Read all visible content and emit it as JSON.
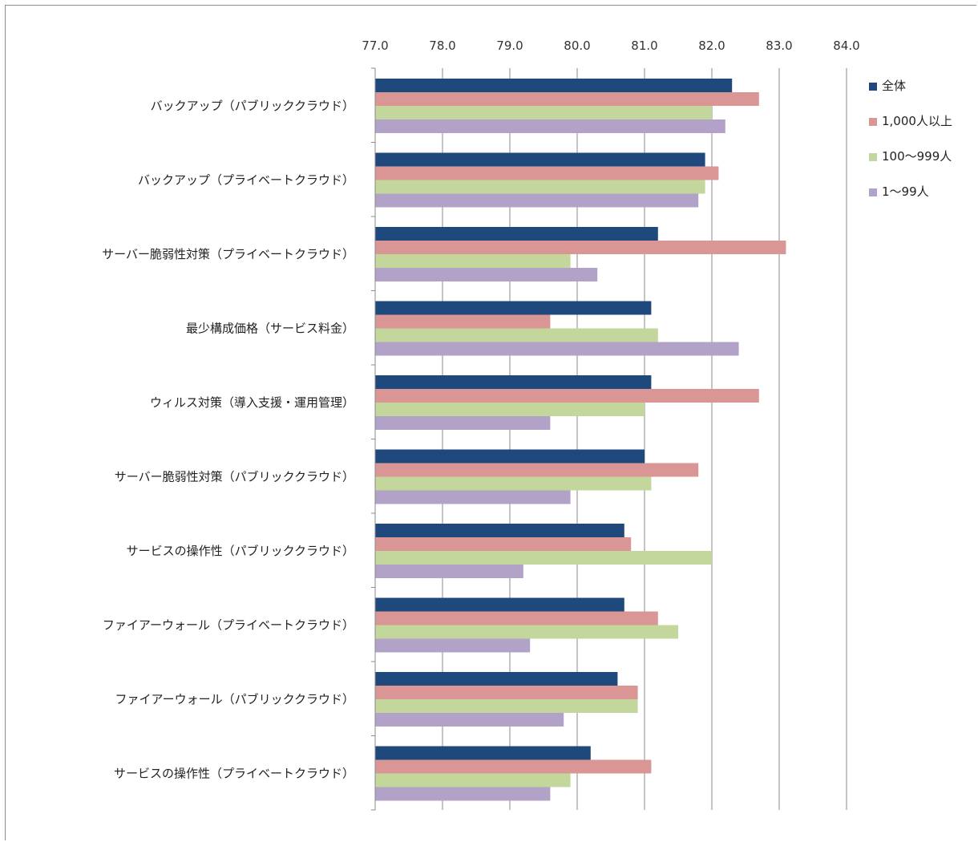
{
  "chart_data": {
    "type": "bar",
    "orientation": "horizontal",
    "categories": [
      "バックアップ（パブリッククラウド）",
      "バックアップ（プライベートクラウド）",
      "サーバー脆弱性対策（プライベートクラウド）",
      "最少構成価格（サービス料金）",
      "ウィルス対策（導入支援・運用管理）",
      "サーバー脆弱性対策（パブリッククラウド）",
      "サービスの操作性（パブリッククラウド）",
      "ファイアーウォール（プライベートクラウド）",
      "ファイアーウォール（パブリッククラウド）",
      "サービスの操作性（プライベートクラウド）"
    ],
    "series": [
      {
        "name": "全体",
        "color": "#1f497d",
        "values": [
          82.3,
          81.9,
          81.2,
          81.1,
          81.1,
          81.0,
          80.7,
          80.7,
          80.6,
          80.2
        ]
      },
      {
        "name": "1,000人以上",
        "color": "#d99694",
        "values": [
          82.7,
          82.1,
          83.1,
          79.6,
          82.7,
          81.8,
          80.8,
          81.2,
          80.9,
          81.1
        ]
      },
      {
        "name": "100〜999人",
        "color": "#c3d69b",
        "values": [
          82.0,
          81.9,
          79.9,
          81.2,
          81.0,
          81.1,
          82.0,
          81.5,
          80.9,
          79.9
        ]
      },
      {
        "name": "1〜99人",
        "color": "#b3a2c7",
        "values": [
          82.2,
          81.8,
          80.3,
          82.4,
          79.6,
          79.9,
          79.2,
          79.3,
          79.8,
          79.6
        ]
      }
    ],
    "x_ticks": [
      "77.0",
      "78.0",
      "79.0",
      "80.0",
      "81.0",
      "82.0",
      "83.0",
      "84.0"
    ],
    "xlim": [
      77.0,
      84.0
    ],
    "grid": true,
    "legend_position": "right",
    "title": "",
    "xlabel": "",
    "ylabel": ""
  }
}
